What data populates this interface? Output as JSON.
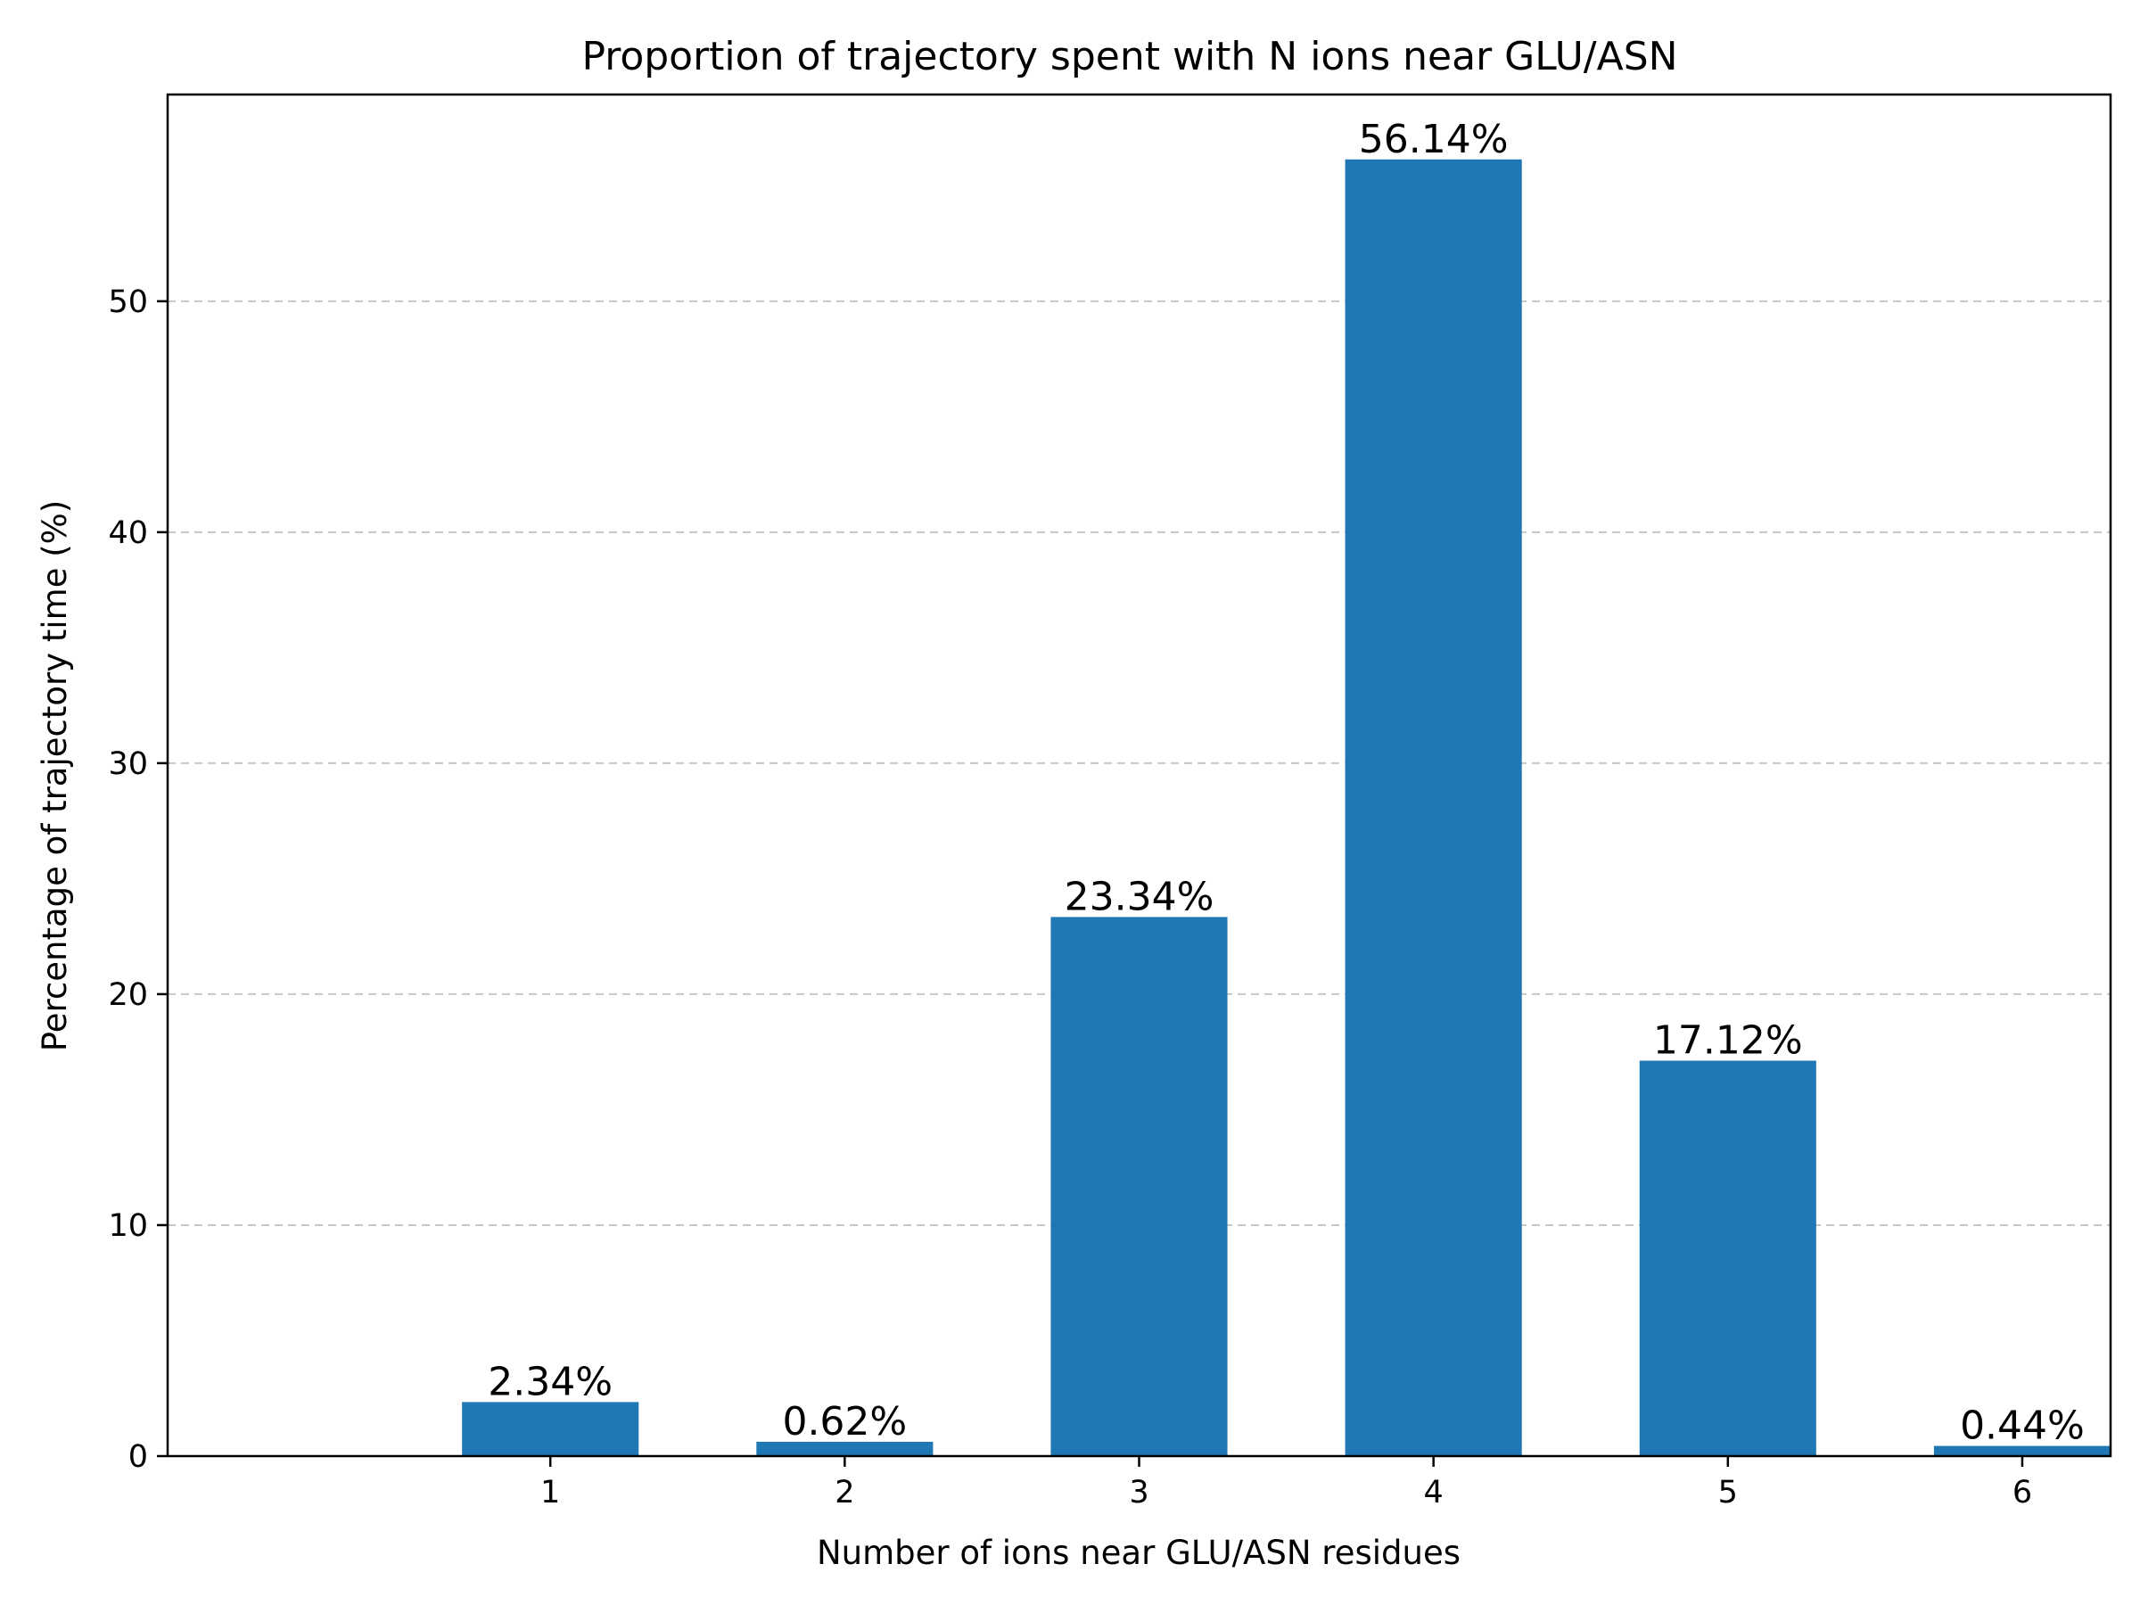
{
  "chart_data": {
    "type": "bar",
    "title": "Proportion of trajectory spent with N ions near GLU/ASN",
    "xlabel": "Number of ions near GLU/ASN residues",
    "ylabel": "Percentage of trajectory time (%)",
    "categories": [
      "1",
      "2",
      "3",
      "4",
      "5",
      "6"
    ],
    "values": [
      2.34,
      0.62,
      23.34,
      56.14,
      17.12,
      0.44
    ],
    "value_labels": [
      "2.34%",
      "0.62%",
      "23.34%",
      "56.14%",
      "17.12%",
      "0.44%"
    ],
    "ylim": [
      0,
      58.95
    ],
    "yticks": [
      0,
      10,
      20,
      30,
      40,
      50
    ],
    "ytick_labels": [
      "0",
      "10",
      "20",
      "30",
      "40",
      "50"
    ],
    "grid": "y-dashed",
    "legend": "none",
    "colors": {
      "bar": "#1f77b4",
      "grid": "#c7c7c7",
      "axis": "#000000"
    }
  }
}
